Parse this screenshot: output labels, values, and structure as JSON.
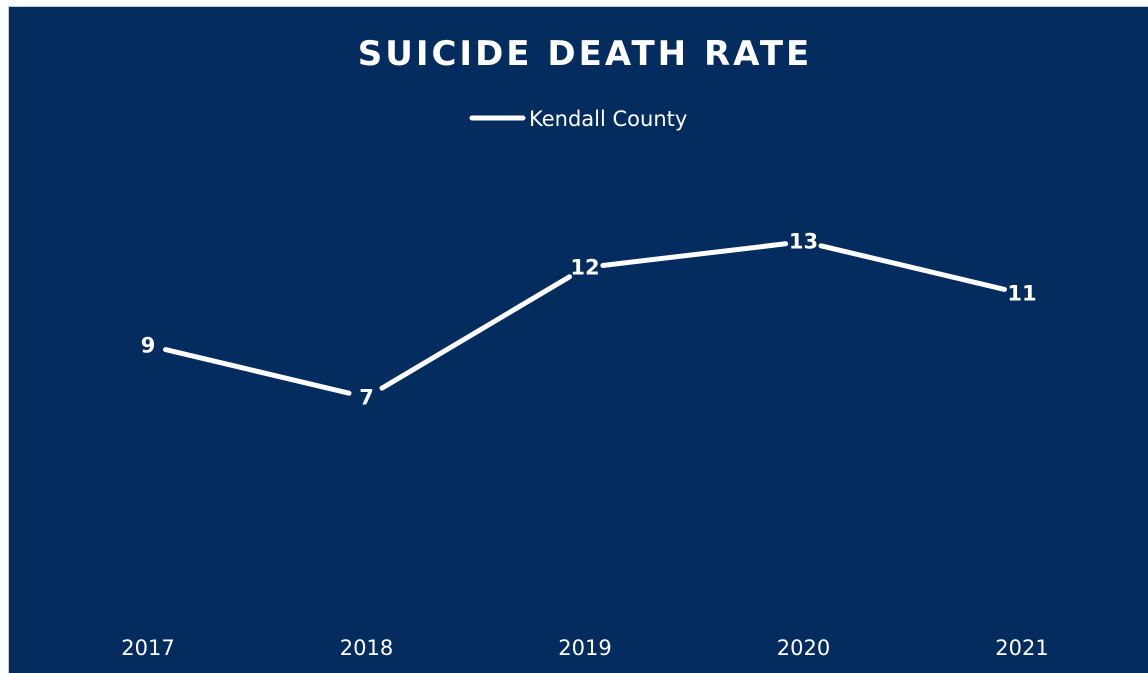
{
  "colors": {
    "background": "#042C5E",
    "line": "#FFFFFF",
    "text": "#FFFFFF"
  },
  "chart_data": {
    "type": "line",
    "title": "SUICIDE DEATH RATE",
    "categories": [
      "2017",
      "2018",
      "2019",
      "2020",
      "2021"
    ],
    "series": [
      {
        "name": "Kendall County",
        "values": [
          9,
          7,
          12,
          13,
          11
        ]
      }
    ],
    "data_labels": true,
    "drop_lines": true,
    "legend_position": "top",
    "grid": false,
    "y_axis_visible": false
  }
}
